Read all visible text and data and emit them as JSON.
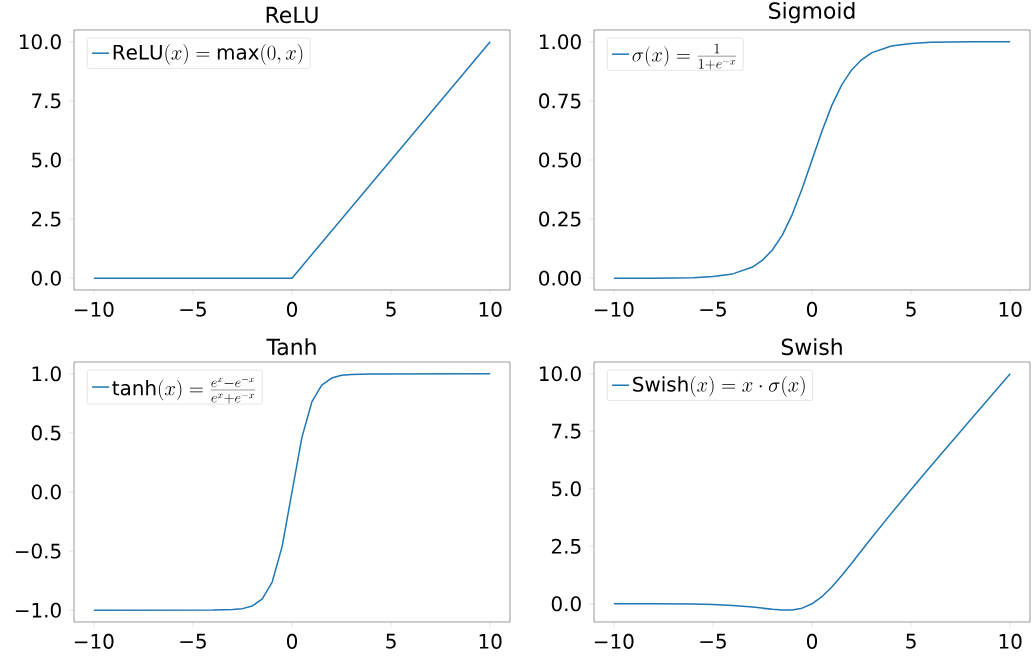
{
  "chart_data": [
    {
      "type": "line",
      "title": "ReLU",
      "x": [
        -10,
        0,
        10
      ],
      "series": [
        {
          "name": "\\mathrm{ReLU}(x) = \\max(0, x)",
          "color": "#1f77b4",
          "values": [
            0,
            0,
            10
          ]
        }
      ],
      "xlim": [
        -11,
        11
      ],
      "ylim": [
        -0.5,
        10.5
      ],
      "xticks": [
        {
          "value": -10,
          "label": "−10"
        },
        {
          "value": -5,
          "label": "−5"
        },
        {
          "value": 0,
          "label": "0"
        },
        {
          "value": 5,
          "label": "5"
        },
        {
          "value": 10,
          "label": "10"
        }
      ],
      "yticks": [
        {
          "value": 0,
          "label": "0.0"
        },
        {
          "value": 2.5,
          "label": "2.5"
        },
        {
          "value": 5,
          "label": "5.0"
        },
        {
          "value": 7.5,
          "label": "7.5"
        },
        {
          "value": 10,
          "label": "10.0"
        }
      ],
      "legend": "top left",
      "grid": false
    },
    {
      "type": "line",
      "title": "Sigmoid",
      "x": [
        -10,
        -8,
        -6,
        -5,
        -4,
        -3,
        -2.5,
        -2,
        -1.5,
        -1,
        -0.5,
        0,
        0.5,
        1,
        1.5,
        2,
        2.5,
        3,
        4,
        5,
        6,
        8,
        10
      ],
      "series": [
        {
          "name": "\\sigma(x) = \\frac{1}{1+e^{-x}}",
          "color": "#1f77b4",
          "values": [
            0.0,
            0.0,
            0.002,
            0.007,
            0.018,
            0.047,
            0.076,
            0.119,
            0.182,
            0.269,
            0.378,
            0.5,
            0.622,
            0.731,
            0.818,
            0.881,
            0.924,
            0.953,
            0.982,
            0.993,
            0.998,
            1.0,
            1.0
          ]
        }
      ],
      "xlim": [
        -11,
        11
      ],
      "ylim": [
        -0.05,
        1.05
      ],
      "xticks": [
        {
          "value": -10,
          "label": "−10"
        },
        {
          "value": -5,
          "label": "−5"
        },
        {
          "value": 0,
          "label": "0"
        },
        {
          "value": 5,
          "label": "5"
        },
        {
          "value": 10,
          "label": "10"
        }
      ],
      "yticks": [
        {
          "value": 0,
          "label": "0.00"
        },
        {
          "value": 0.25,
          "label": "0.25"
        },
        {
          "value": 0.5,
          "label": "0.50"
        },
        {
          "value": 0.75,
          "label": "0.75"
        },
        {
          "value": 1,
          "label": "1.00"
        }
      ],
      "legend": "top left",
      "grid": false
    },
    {
      "type": "line",
      "title": "Tanh",
      "x": [
        -10,
        -4,
        -3,
        -2.5,
        -2,
        -1.5,
        -1,
        -0.5,
        0,
        0.5,
        1,
        1.5,
        2,
        2.5,
        3,
        4,
        10
      ],
      "series": [
        {
          "name": "\\tanh(x) = \\frac{e^{x} - e^{-x}}{e^{x} + e^{-x}}",
          "color": "#1f77b4",
          "values": [
            -1.0,
            -0.999,
            -0.995,
            -0.987,
            -0.964,
            -0.905,
            -0.762,
            -0.462,
            0,
            0.462,
            0.762,
            0.905,
            0.964,
            0.987,
            0.995,
            0.999,
            1.0
          ]
        }
      ],
      "xlim": [
        -11,
        11
      ],
      "ylim": [
        -1.1,
        1.1
      ],
      "xticks": [
        {
          "value": -10,
          "label": "−10"
        },
        {
          "value": -5,
          "label": "−5"
        },
        {
          "value": 0,
          "label": "0"
        },
        {
          "value": 5,
          "label": "5"
        },
        {
          "value": 10,
          "label": "10"
        }
      ],
      "yticks": [
        {
          "value": -1,
          "label": "−1.0"
        },
        {
          "value": -0.5,
          "label": "−0.5"
        },
        {
          "value": 0,
          "label": "0.0"
        },
        {
          "value": 0.5,
          "label": "0.5"
        },
        {
          "value": 1,
          "label": "1.0"
        }
      ],
      "legend": "top left",
      "grid": false
    },
    {
      "type": "line",
      "title": "Swish",
      "x": [
        -10,
        -8,
        -6,
        -5,
        -4,
        -3,
        -2,
        -1.5,
        -1,
        -0.5,
        0,
        0.5,
        1,
        1.5,
        2,
        3,
        4,
        5,
        6,
        8,
        10
      ],
      "series": [
        {
          "name": "\\mathrm{Swish}(x) = x \\cdot \\sigma(x)",
          "color": "#1f77b4",
          "values": [
            0.0,
            0.0,
            -0.01,
            -0.03,
            -0.07,
            -0.14,
            -0.24,
            -0.27,
            -0.27,
            -0.19,
            0,
            0.31,
            0.73,
            1.23,
            1.76,
            2.86,
            3.93,
            4.97,
            5.99,
            8.0,
            10.0
          ]
        }
      ],
      "xlim": [
        -11,
        11
      ],
      "ylim": [
        -0.79,
        10.51
      ],
      "xticks": [
        {
          "value": -10,
          "label": "−10"
        },
        {
          "value": -5,
          "label": "−5"
        },
        {
          "value": 0,
          "label": "0"
        },
        {
          "value": 5,
          "label": "5"
        },
        {
          "value": 10,
          "label": "10"
        }
      ],
      "yticks": [
        {
          "value": 0,
          "label": "0.0"
        },
        {
          "value": 2.5,
          "label": "2.5"
        },
        {
          "value": 5,
          "label": "5.0"
        },
        {
          "value": 7.5,
          "label": "7.5"
        },
        {
          "value": 10,
          "label": "10.0"
        }
      ],
      "legend": "top left",
      "grid": false
    }
  ]
}
